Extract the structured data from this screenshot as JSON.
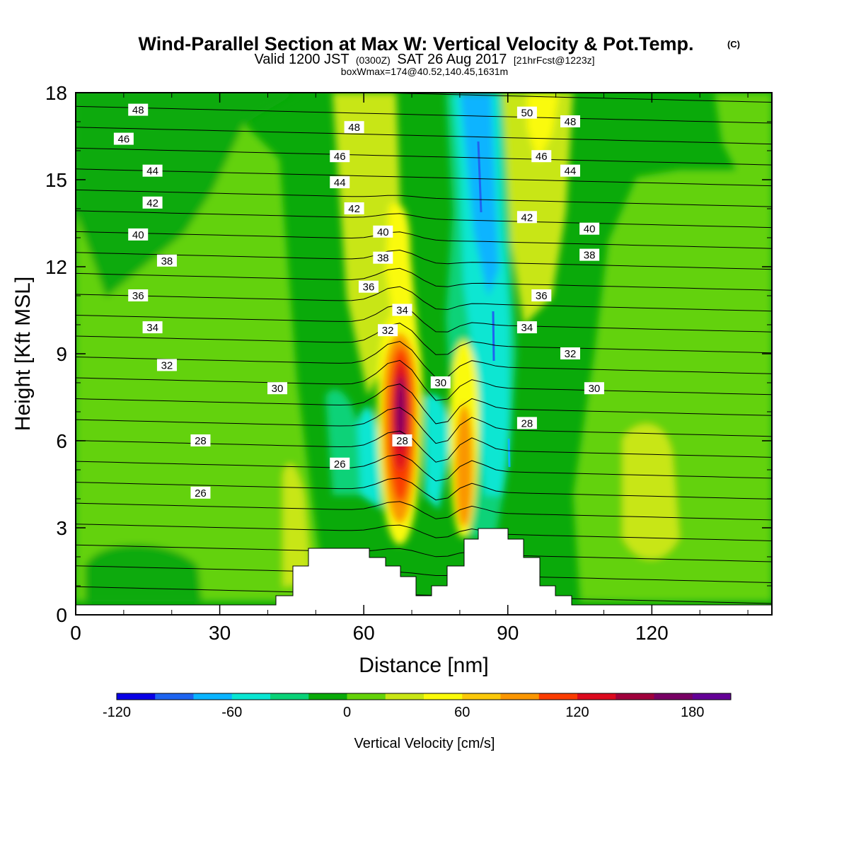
{
  "title": "Wind-Parallel Section at Max W: Vertical Velocity & Pot.Temp.",
  "copyright_mark": "(C)",
  "subtitle": {
    "prefix": "Valid 1200 JST",
    "utc": "(0300Z)",
    "date": "SAT 26 Aug 2017",
    "forecast": "[21hrFcst@1223z]"
  },
  "subtitle2": "boxWmax=174@40.52,140.45,1631m",
  "chart_data": {
    "type": "contour",
    "xlabel": "Distance [nm]",
    "ylabel": "Height [Kft MSL]",
    "xlim": [
      0,
      145
    ],
    "ylim": [
      0,
      18
    ],
    "x_ticks": [
      0,
      30,
      60,
      90,
      120
    ],
    "y_ticks": [
      0,
      3,
      6,
      9,
      12,
      15,
      18
    ],
    "colorbar": {
      "label": "Vertical Velocity [cm/s]",
      "min": -120,
      "max": 200,
      "step": 20,
      "tick_labels": [
        -120,
        -60,
        0,
        60,
        120,
        180
      ],
      "colors": [
        "#0a00e6",
        "#1e64f0",
        "#0ab4ff",
        "#0ae6d2",
        "#0ad278",
        "#0aaa0a",
        "#64d20a",
        "#c8e614",
        "#fafa0a",
        "#fac80a",
        "#fa9600",
        "#fa3c00",
        "#dc0a1e",
        "#a0003c",
        "#780064",
        "#640096"
      ]
    },
    "theta_labels": [
      {
        "text": "48",
        "x": 13,
        "y": 17.4
      },
      {
        "text": "46",
        "x": 10,
        "y": 16.4
      },
      {
        "text": "44",
        "x": 16,
        "y": 15.3
      },
      {
        "text": "42",
        "x": 16,
        "y": 14.2
      },
      {
        "text": "40",
        "x": 13,
        "y": 13.1
      },
      {
        "text": "38",
        "x": 19,
        "y": 12.2
      },
      {
        "text": "36",
        "x": 13,
        "y": 11.0
      },
      {
        "text": "34",
        "x": 16,
        "y": 9.9
      },
      {
        "text": "32",
        "x": 19,
        "y": 8.6
      },
      {
        "text": "30",
        "x": 42,
        "y": 7.8
      },
      {
        "text": "28",
        "x": 26,
        "y": 6.0
      },
      {
        "text": "26",
        "x": 26,
        "y": 4.2
      },
      {
        "text": "26",
        "x": 55,
        "y": 5.2
      },
      {
        "text": "48",
        "x": 58,
        "y": 16.8
      },
      {
        "text": "46",
        "x": 55,
        "y": 15.8
      },
      {
        "text": "44",
        "x": 55,
        "y": 14.9
      },
      {
        "text": "42",
        "x": 58,
        "y": 14.0
      },
      {
        "text": "40",
        "x": 64,
        "y": 13.2
      },
      {
        "text": "38",
        "x": 64,
        "y": 12.3
      },
      {
        "text": "36",
        "x": 61,
        "y": 11.3
      },
      {
        "text": "34",
        "x": 68,
        "y": 10.5
      },
      {
        "text": "32",
        "x": 65,
        "y": 9.8
      },
      {
        "text": "30",
        "x": 76,
        "y": 8.0
      },
      {
        "text": "28",
        "x": 68,
        "y": 6.0
      },
      {
        "text": "28",
        "x": 94,
        "y": 6.6
      },
      {
        "text": "50",
        "x": 94,
        "y": 17.3
      },
      {
        "text": "48",
        "x": 103,
        "y": 17.0
      },
      {
        "text": "46",
        "x": 97,
        "y": 15.8
      },
      {
        "text": "44",
        "x": 103,
        "y": 15.3
      },
      {
        "text": "42",
        "x": 94,
        "y": 13.7
      },
      {
        "text": "40",
        "x": 107,
        "y": 13.3
      },
      {
        "text": "38",
        "x": 107,
        "y": 12.4
      },
      {
        "text": "36",
        "x": 97,
        "y": 11.0
      },
      {
        "text": "34",
        "x": 94,
        "y": 9.9
      },
      {
        "text": "32",
        "x": 103,
        "y": 9.0
      },
      {
        "text": "30",
        "x": 108,
        "y": 7.8
      }
    ]
  }
}
